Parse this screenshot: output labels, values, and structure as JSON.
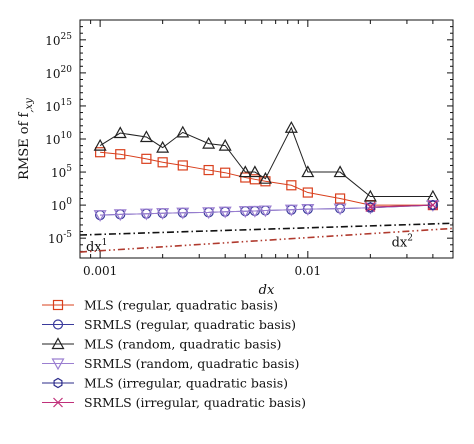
{
  "chart_data": {
    "type": "line",
    "title": "",
    "xlabel": "dx",
    "ylabel": "RMSE of f",
    "ylabel_subscript": ",xy",
    "x_scale": "log",
    "y_scale": "log",
    "xlim": [
      0.0008,
      0.05
    ],
    "ylim": [
      1e-08,
      1e+28
    ],
    "x_ticks": [
      {
        "value": 0.001,
        "label": "0.001"
      },
      {
        "value": 0.01,
        "label": "0.01"
      }
    ],
    "y_ticks": [
      {
        "exp": -5,
        "label": "10"
      },
      {
        "exp": 0,
        "label": "10"
      },
      {
        "exp": 5,
        "label": "10"
      },
      {
        "exp": 10,
        "label": "10"
      },
      {
        "exp": 15,
        "label": "10"
      },
      {
        "exp": 20,
        "label": "10"
      },
      {
        "exp": 25,
        "label": "10"
      }
    ],
    "grid": false,
    "legend_placement": "below",
    "series": [
      {
        "name": "MLS (regular, quadratic basis)",
        "marker": "square",
        "color": "#d9401e",
        "x": [
          0.001,
          0.00125,
          0.00167,
          0.002,
          0.0025,
          0.00333,
          0.004,
          0.005,
          0.00556,
          0.00625,
          0.00833,
          0.01,
          0.0143,
          0.02,
          0.04
        ],
        "y": [
          100000000.0,
          50000000.0,
          10000000.0,
          3000000.0,
          1000000.0,
          200000.0,
          80000.0,
          15000.0,
          8000.0,
          4000.0,
          1000.0,
          80,
          10,
          1,
          1
        ]
      },
      {
        "name": "SRMLS (regular, quadratic basis)",
        "marker": "circle",
        "color": "#3a3a9c",
        "x": [
          0.001,
          0.00125,
          0.00167,
          0.002,
          0.0025,
          0.00333,
          0.004,
          0.005,
          0.00556,
          0.00625,
          0.00833,
          0.01,
          0.0143,
          0.02,
          0.04
        ],
        "y": [
          0.03,
          0.04,
          0.05,
          0.06,
          0.07,
          0.08,
          0.1,
          0.12,
          0.13,
          0.15,
          0.2,
          0.25,
          0.3,
          0.4,
          1
        ]
      },
      {
        "name": "MLS (random, quadratic basis)",
        "marker": "triangle-up",
        "color": "#222222",
        "x": [
          0.001,
          0.00125,
          0.00167,
          0.002,
          0.0025,
          0.00333,
          0.004,
          0.005,
          0.00556,
          0.00625,
          0.00833,
          0.01,
          0.0143,
          0.02,
          0.04
        ],
        "y": [
          1000000000.0,
          80000000000.0,
          20000000000.0,
          500000000.0,
          100000000000.0,
          2000000000.0,
          1000000000.0,
          100000.0,
          100000.0,
          10000.0,
          500000000000.0,
          100000.0,
          100000.0,
          20,
          20
        ]
      },
      {
        "name": "SRMLS (random, quadratic basis)",
        "marker": "triangle-down",
        "color": "#9b7fd1",
        "x": [
          0.001,
          0.00125,
          0.00167,
          0.002,
          0.0025,
          0.00333,
          0.004,
          0.005,
          0.00556,
          0.00625,
          0.00833,
          0.01,
          0.0143,
          0.02,
          0.04
        ],
        "y": [
          0.03,
          0.04,
          0.05,
          0.06,
          0.07,
          0.08,
          0.1,
          0.12,
          0.13,
          0.15,
          0.2,
          0.25,
          0.3,
          0.4,
          1
        ]
      },
      {
        "name": "MLS (irregular, quadratic basis)",
        "marker": "hexagon",
        "color": "#2b2b8a",
        "x": [
          0.02,
          0.04
        ],
        "y": [
          0.5,
          1
        ]
      },
      {
        "name": "SRMLS (irregular, quadratic basis)",
        "marker": "x",
        "color": "#c0307a",
        "x": [
          0.02,
          0.04
        ],
        "y": [
          0.5,
          1
        ]
      }
    ],
    "reference_lines": [
      {
        "label": "dx",
        "superscript": "1",
        "color": "#111111",
        "style": "dash-dot",
        "label_anchor": "start",
        "x": [
          0.0008,
          0.05
        ],
        "y": [
          3e-05,
          0.0018
        ]
      },
      {
        "label": "dx",
        "superscript": "2",
        "color": "#b03a2e",
        "style": "dash-dot-dot",
        "label_anchor": "end",
        "x": [
          0.0008,
          0.05
        ],
        "y": [
          8e-08,
          0.0003
        ]
      }
    ]
  }
}
